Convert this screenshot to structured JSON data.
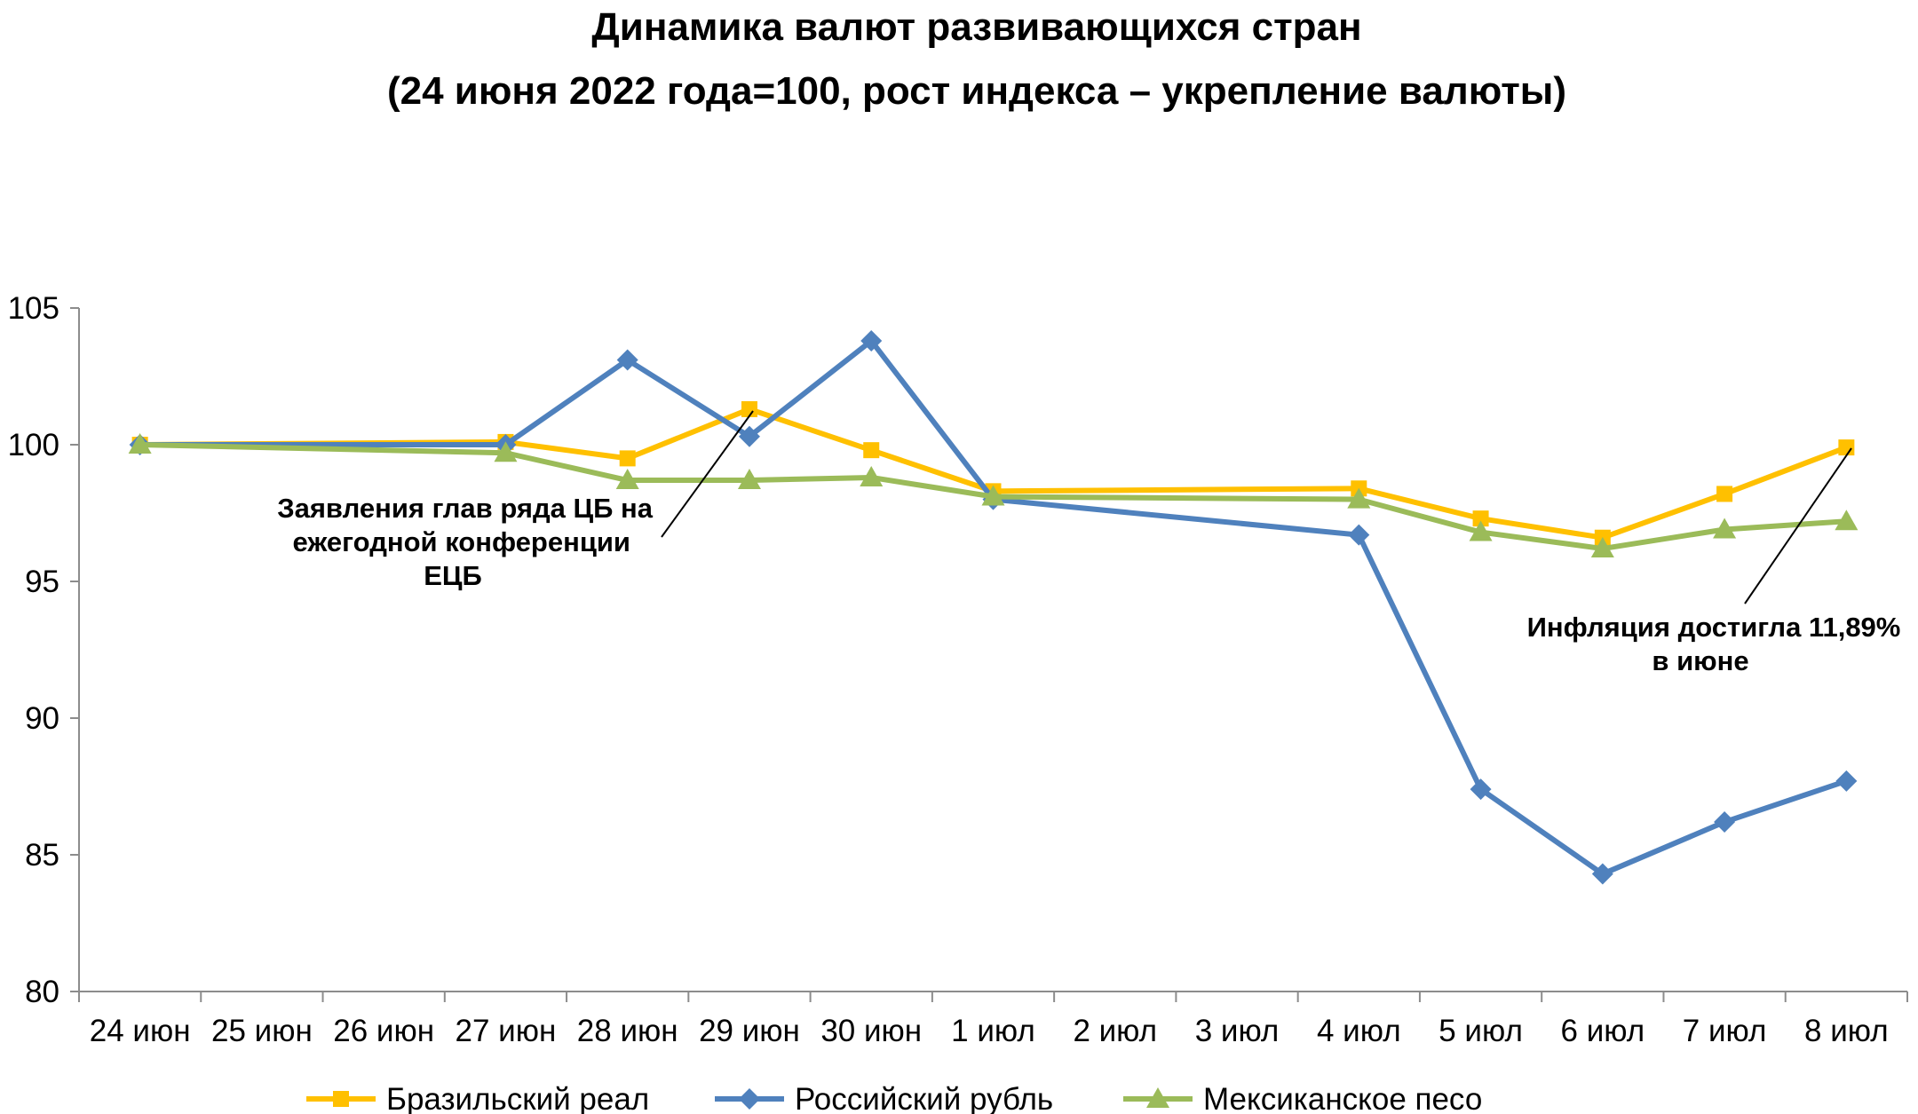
{
  "title": "Динамика валют развивающихся стран",
  "subtitle": "(24 июня 2022 года=100, рост индекса – укрепление валюты)",
  "chart_data": {
    "type": "line",
    "categories": [
      "24 июн",
      "25 июн",
      "26 июн",
      "27 июн",
      "28 июн",
      "29 июн",
      "30 июн",
      "1 июл",
      "2 июл",
      "3 июл",
      "4 июл",
      "5 июл",
      "6 июл",
      "7 июл",
      "8 июл"
    ],
    "ylim": [
      80,
      105
    ],
    "yticks": [
      80,
      85,
      90,
      95,
      100,
      105
    ],
    "grid": false,
    "legend_position": "bottom",
    "series": [
      {
        "name": "Бразильский реал",
        "color": "#FFC000",
        "marker": "square",
        "values": [
          100,
          null,
          null,
          100.1,
          99.5,
          101.3,
          99.8,
          98.3,
          null,
          null,
          98.4,
          97.3,
          96.6,
          98.2,
          99.9
        ]
      },
      {
        "name": "Российский рубль",
        "color": "#4F81BD",
        "marker": "diamond",
        "values": [
          100,
          null,
          null,
          100,
          103.1,
          100.3,
          103.8,
          98.0,
          null,
          null,
          96.7,
          87.4,
          84.3,
          86.2,
          87.7
        ]
      },
      {
        "name": "Мексиканское песо",
        "color": "#9BBB59",
        "marker": "triangle",
        "values": [
          100,
          null,
          null,
          99.7,
          98.7,
          98.7,
          98.8,
          98.1,
          null,
          null,
          98.0,
          96.8,
          96.2,
          96.9,
          97.2
        ]
      }
    ],
    "annotations": [
      {
        "lines": [
          "Заявления глав ряда ЦБ на",
          "ежегодной конференции",
          "ЕЦБ"
        ]
      },
      {
        "lines": [
          "Инфляция достигла 11,89%",
          "в июне"
        ]
      }
    ]
  }
}
